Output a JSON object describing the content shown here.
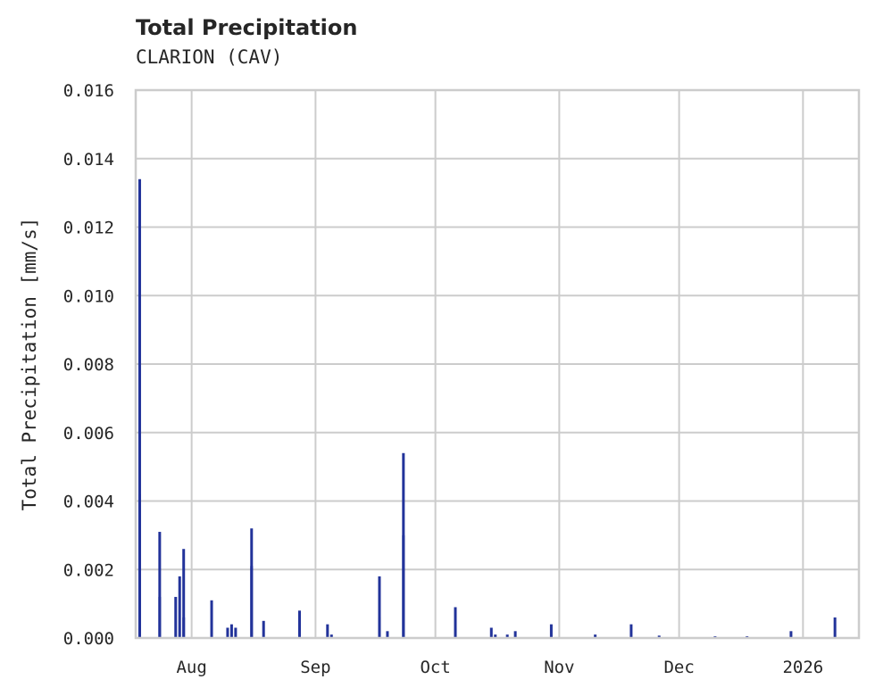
{
  "header": {
    "title": "Total Precipitation",
    "subtitle": "CLARION (CAV)"
  },
  "colors": {
    "series": "#22339a",
    "grid": "#cccccc",
    "text": "#262626",
    "background": "#ffffff"
  },
  "chart_data": {
    "type": "bar",
    "title": "Total Precipitation",
    "subtitle": "CLARION (CAV)",
    "xlabel": "",
    "ylabel": "Total Precipitation [mm/s]",
    "ylim": [
      0,
      0.016
    ],
    "yticks": [
      "0.000",
      "0.002",
      "0.004",
      "0.006",
      "0.008",
      "0.010",
      "0.012",
      "0.014",
      "0.016"
    ],
    "xticks": [
      "Aug",
      "Sep",
      "Oct",
      "Nov",
      "Dec",
      "2026"
    ],
    "xrange": [
      "2025-07-18",
      "2026-01-15"
    ],
    "grid": true,
    "legend": null,
    "series": [
      {
        "name": "Total Precipitation",
        "points": [
          {
            "date": "2025-07-19",
            "value": 0.0134
          },
          {
            "date": "2025-07-19",
            "value": 0.0042
          },
          {
            "date": "2025-07-19",
            "value": 0.0003
          },
          {
            "date": "2025-07-24",
            "value": 0.0031
          },
          {
            "date": "2025-07-24",
            "value": 0.0012
          },
          {
            "date": "2025-07-28",
            "value": 0.0012
          },
          {
            "date": "2025-07-29",
            "value": 0.0018
          },
          {
            "date": "2025-07-30",
            "value": 0.0026
          },
          {
            "date": "2025-07-30",
            "value": 0.0006
          },
          {
            "date": "2025-08-06",
            "value": 0.0011
          },
          {
            "date": "2025-08-10",
            "value": 0.0003
          },
          {
            "date": "2025-08-11",
            "value": 0.0004
          },
          {
            "date": "2025-08-12",
            "value": 0.0003
          },
          {
            "date": "2025-08-16",
            "value": 0.0032
          },
          {
            "date": "2025-08-16",
            "value": 0.0021
          },
          {
            "date": "2025-08-19",
            "value": 0.0005
          },
          {
            "date": "2025-08-28",
            "value": 0.0008
          },
          {
            "date": "2025-09-04",
            "value": 0.0004
          },
          {
            "date": "2025-09-05",
            "value": 0.0001
          },
          {
            "date": "2025-09-17",
            "value": 0.0018
          },
          {
            "date": "2025-09-17",
            "value": 0.0006
          },
          {
            "date": "2025-09-19",
            "value": 0.0002
          },
          {
            "date": "2025-09-23",
            "value": 0.0054
          },
          {
            "date": "2025-09-23",
            "value": 0.003
          },
          {
            "date": "2025-10-06",
            "value": 0.0009
          },
          {
            "date": "2025-10-06",
            "value": 0.0003
          },
          {
            "date": "2025-10-15",
            "value": 0.0003
          },
          {
            "date": "2025-10-16",
            "value": 0.0001
          },
          {
            "date": "2025-10-19",
            "value": 0.0001
          },
          {
            "date": "2025-10-21",
            "value": 0.0002
          },
          {
            "date": "2025-10-30",
            "value": 0.0004
          },
          {
            "date": "2025-11-10",
            "value": 0.0001
          },
          {
            "date": "2025-11-19",
            "value": 0.0004
          },
          {
            "date": "2025-11-26",
            "value": 7e-05
          },
          {
            "date": "2025-12-10",
            "value": 5e-05
          },
          {
            "date": "2025-12-18",
            "value": 5e-05
          },
          {
            "date": "2025-12-29",
            "value": 0.0002
          },
          {
            "date": "2026-01-09",
            "value": 0.0006
          }
        ]
      }
    ]
  }
}
